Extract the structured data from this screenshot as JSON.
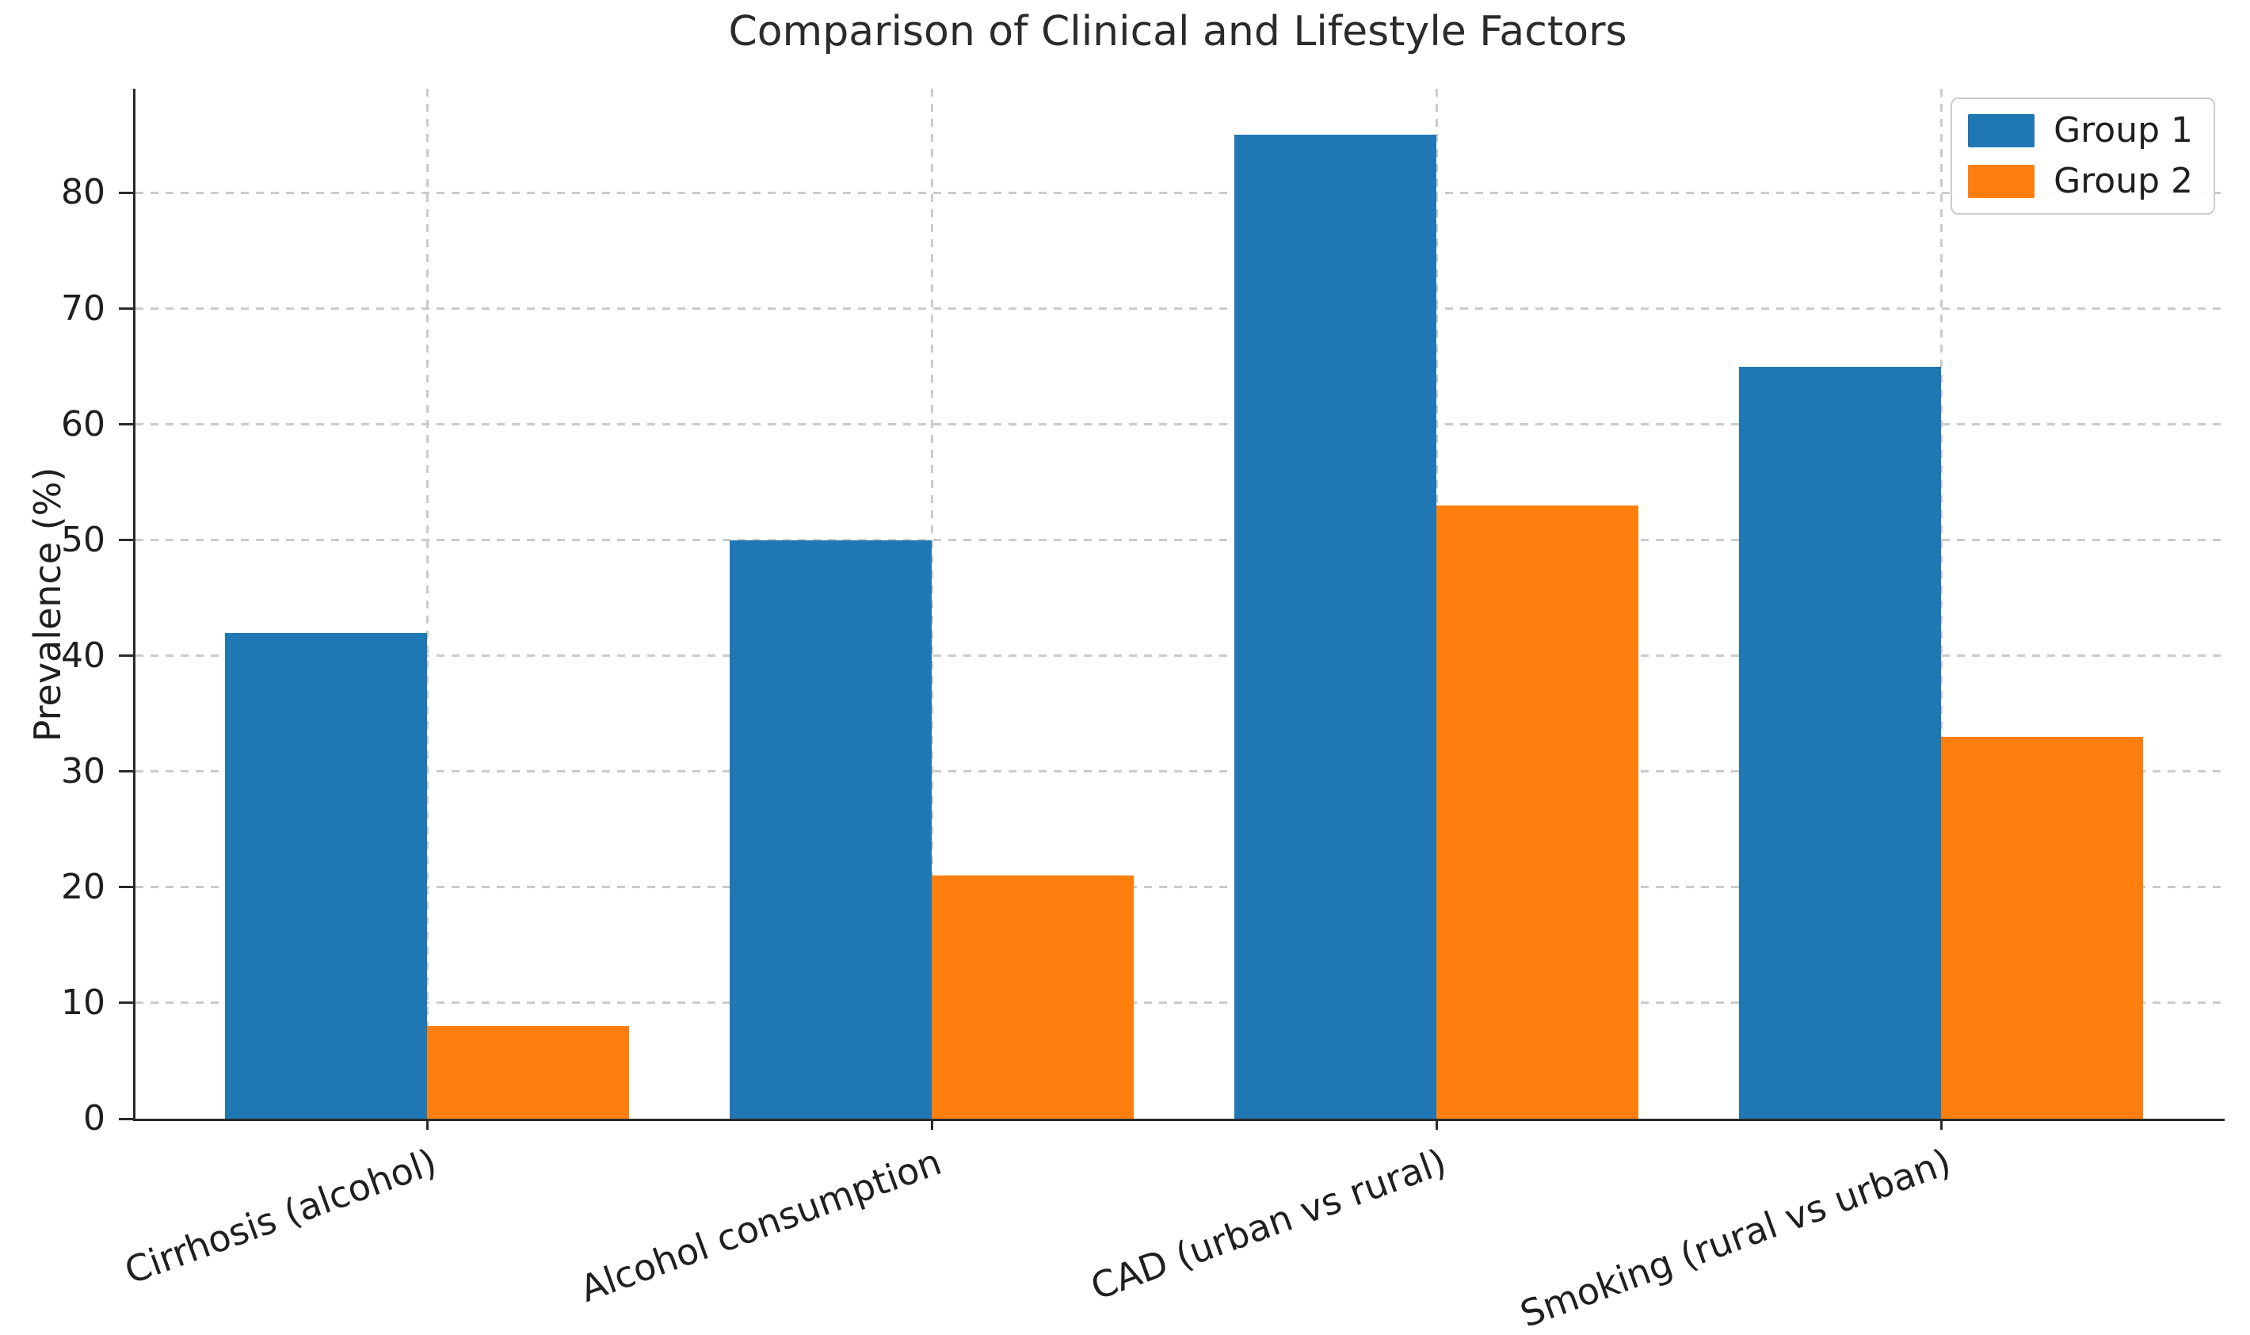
{
  "title": "Comparison of Clinical and Lifestyle Factors",
  "chart_data": {
    "type": "bar",
    "title": "Comparison of Clinical and Lifestyle Factors",
    "categories": [
      "Cirrhosis (alcohol)",
      "Alcohol consumption",
      "CAD (urban vs rural)",
      "Smoking (rural vs urban)"
    ],
    "series": [
      {
        "name": "Group 1",
        "color": "#1f77b4",
        "values": [
          42,
          50,
          85,
          65
        ]
      },
      {
        "name": "Group 2",
        "color": "#ff7f0e",
        "values": [
          8,
          21,
          53,
          33
        ]
      }
    ],
    "xlabel": "",
    "ylabel": "Prevalence (%)",
    "ylim": [
      0,
      89
    ],
    "yticks": [
      0,
      10,
      20,
      30,
      40,
      50,
      60,
      70,
      80
    ],
    "grid": true,
    "grid_style": "dashed",
    "legend_position": "upper right",
    "bar_width": 0.4,
    "xtick_rotation": 20
  }
}
